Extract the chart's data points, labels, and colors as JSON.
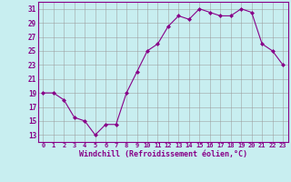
{
  "x": [
    0,
    1,
    2,
    3,
    4,
    5,
    6,
    7,
    8,
    9,
    10,
    11,
    12,
    13,
    14,
    15,
    16,
    17,
    18,
    19,
    20,
    21,
    22,
    23
  ],
  "y": [
    19,
    19,
    18,
    15.5,
    15,
    13,
    14.5,
    14.5,
    19,
    22,
    25,
    26,
    28.5,
    30,
    29.5,
    31,
    30.5,
    30,
    30,
    31,
    30.5,
    26,
    25,
    23
  ],
  "xlabel": "Windchill (Refroidissement éolien,°C)",
  "ylim": [
    12,
    32
  ],
  "xlim": [
    -0.5,
    23.5
  ],
  "yticks": [
    13,
    15,
    17,
    19,
    21,
    23,
    25,
    27,
    29,
    31
  ],
  "xtick_labels": [
    "0",
    "1",
    "2",
    "3",
    "4",
    "5",
    "6",
    "7",
    "8",
    "9",
    "10",
    "11",
    "12",
    "13",
    "14",
    "15",
    "16",
    "17",
    "18",
    "19",
    "20",
    "21",
    "22",
    "23"
  ],
  "line_color": "#880088",
  "marker": "D",
  "bg_color": "#c8eef0",
  "grid_color": "#999999",
  "label_color": "#880088",
  "spine_color": "#880088"
}
